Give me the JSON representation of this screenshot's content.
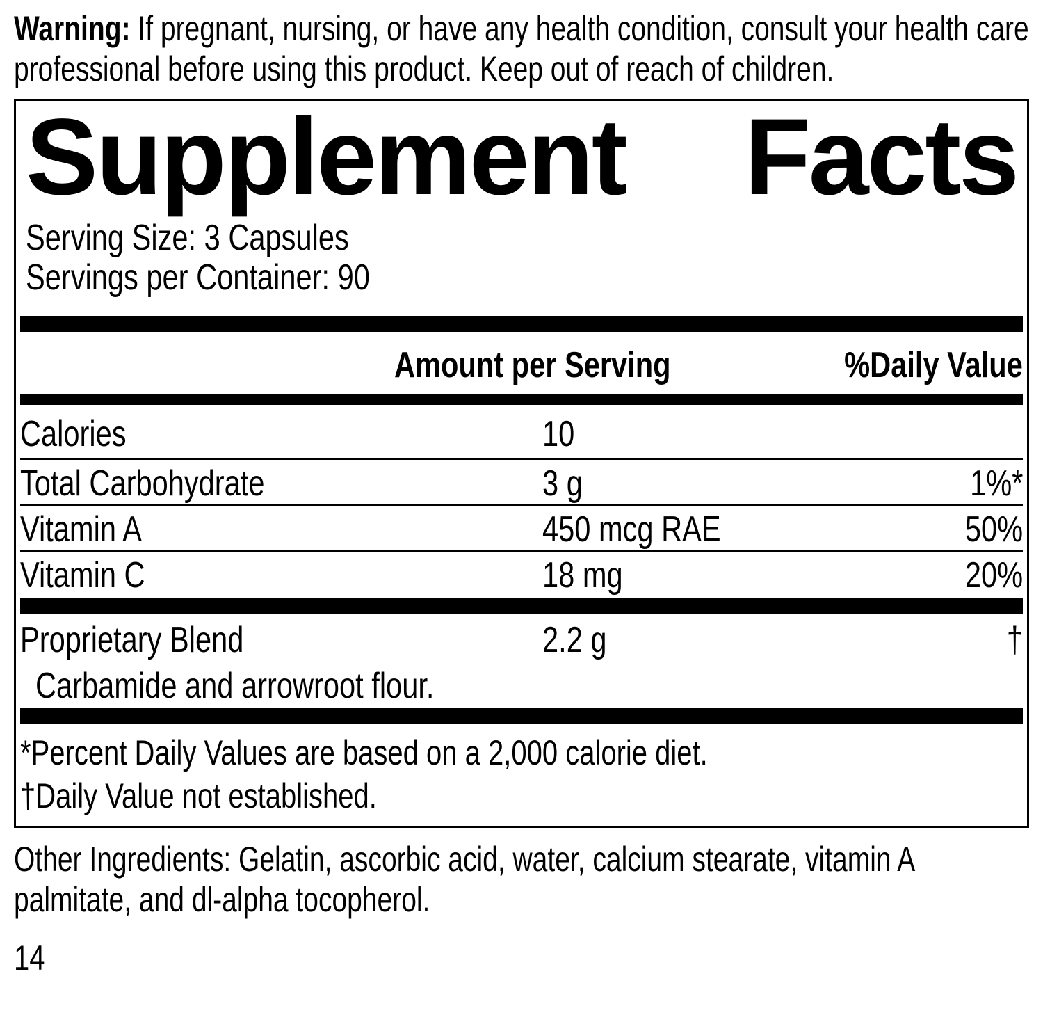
{
  "colors": {
    "text": "#000000",
    "background": "#ffffff"
  },
  "warning": {
    "label": "Warning:",
    "text": "If pregnant, nursing, or have any health condition, consult your health care professional before using this product. Keep out of reach of children."
  },
  "panel": {
    "title": {
      "word1": "Supplement",
      "word2": "Facts"
    },
    "serving_size": "Serving Size: 3 Capsules",
    "servings_per_container": "Servings per Container: 90",
    "header": {
      "amount": "Amount per Serving",
      "daily_value": "%Daily Value"
    },
    "rows": [
      {
        "name": "Calories",
        "amount": "10",
        "dv": ""
      },
      {
        "name": "Total Carbohydrate",
        "amount": "3 g",
        "dv": "1%*"
      },
      {
        "name": "Vitamin A",
        "amount": "450 mcg RAE",
        "dv": "50%"
      },
      {
        "name": "Vitamin C",
        "amount": "18 mg",
        "dv": "20%"
      }
    ],
    "blend": {
      "name": "Proprietary Blend",
      "amount": "2.2 g",
      "dv": "†",
      "description": "Carbamide and arrowroot flour."
    },
    "footnotes": [
      "*Percent Daily Values are based on a 2,000 calorie diet.",
      "†Daily Value not established."
    ]
  },
  "other_ingredients": "Other Ingredients: Gelatin, ascorbic acid, water, calcium stearate, vitamin A palmitate, and dl-alpha tocopherol.",
  "page_number": "14"
}
